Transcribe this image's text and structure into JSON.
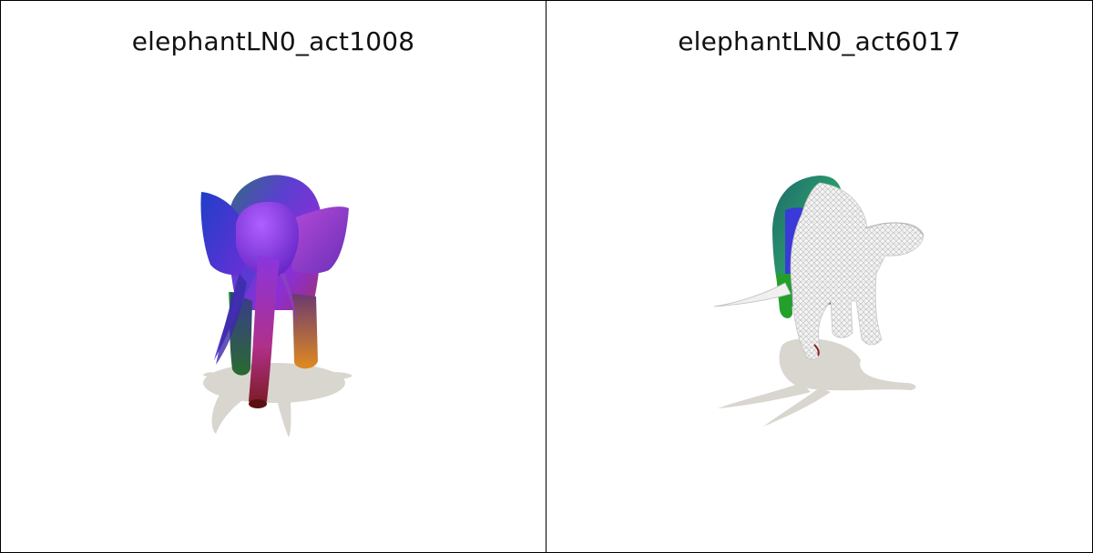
{
  "panels": [
    {
      "title": "elephantLN0_act1008"
    },
    {
      "title": "elephantLN0_act6017"
    }
  ]
}
